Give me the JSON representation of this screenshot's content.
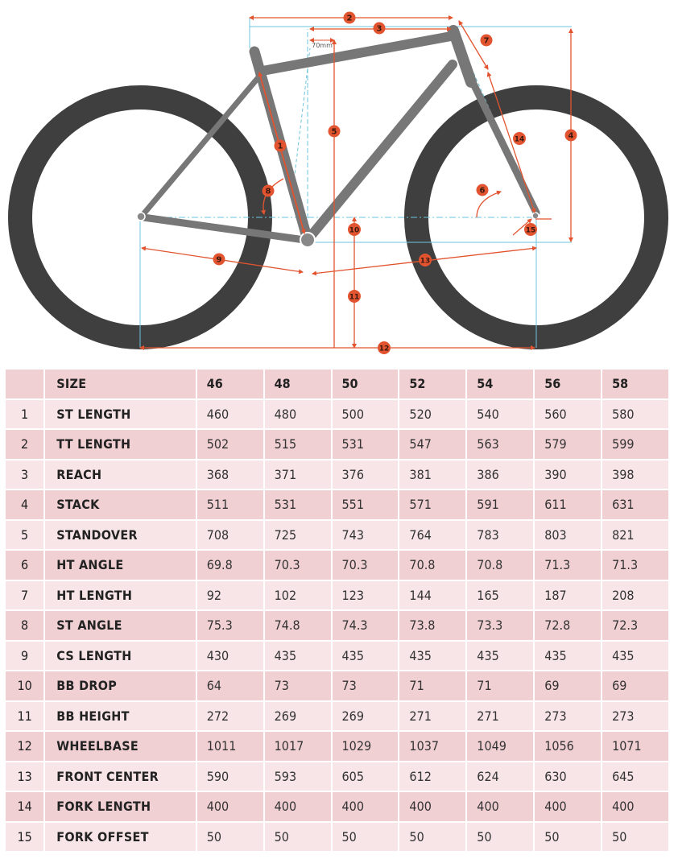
{
  "diagram": {
    "dimension_note": "70mm",
    "callouts": [
      "1",
      "2",
      "3",
      "4",
      "5",
      "6",
      "7",
      "8",
      "9",
      "10",
      "11",
      "12",
      "13",
      "14",
      "15"
    ]
  },
  "table": {
    "header": {
      "label": "SIZE",
      "sizes": [
        "46",
        "48",
        "50",
        "52",
        "54",
        "56",
        "58"
      ]
    },
    "rows": [
      {
        "num": "1",
        "name": "ST LENGTH",
        "values": [
          "460",
          "480",
          "500",
          "520",
          "540",
          "560",
          "580"
        ]
      },
      {
        "num": "2",
        "name": "TT LENGTH",
        "values": [
          "502",
          "515",
          "531",
          "547",
          "563",
          "579",
          "599"
        ]
      },
      {
        "num": "3",
        "name": "REACH",
        "values": [
          "368",
          "371",
          "376",
          "381",
          "386",
          "390",
          "398"
        ]
      },
      {
        "num": "4",
        "name": "STACK",
        "values": [
          "511",
          "531",
          "551",
          "571",
          "591",
          "611",
          "631"
        ]
      },
      {
        "num": "5",
        "name": "STANDOVER",
        "values": [
          "708",
          "725",
          "743",
          "764",
          "783",
          "803",
          "821"
        ]
      },
      {
        "num": "6",
        "name": "HT ANGLE",
        "values": [
          "69.8",
          "70.3",
          "70.3",
          "70.8",
          "70.8",
          "71.3",
          "71.3"
        ]
      },
      {
        "num": "7",
        "name": "HT LENGTH",
        "values": [
          "92",
          "102",
          "123",
          "144",
          "165",
          "187",
          "208"
        ]
      },
      {
        "num": "8",
        "name": "ST ANGLE",
        "values": [
          "75.3",
          "74.8",
          "74.3",
          "73.8",
          "73.3",
          "72.8",
          "72.3"
        ]
      },
      {
        "num": "9",
        "name": "CS LENGTH",
        "values": [
          "430",
          "435",
          "435",
          "435",
          "435",
          "435",
          "435"
        ]
      },
      {
        "num": "10",
        "name": "BB DROP",
        "values": [
          "64",
          "73",
          "73",
          "71",
          "71",
          "69",
          "69"
        ]
      },
      {
        "num": "11",
        "name": "BB HEIGHT",
        "values": [
          "272",
          "269",
          "269",
          "271",
          "271",
          "273",
          "273"
        ]
      },
      {
        "num": "12",
        "name": "WHEELBASE",
        "values": [
          "1011",
          "1017",
          "1029",
          "1037",
          "1049",
          "1056",
          "1071"
        ]
      },
      {
        "num": "13",
        "name": "FRONT CENTER",
        "values": [
          "590",
          "593",
          "605",
          "612",
          "624",
          "630",
          "645"
        ]
      },
      {
        "num": "14",
        "name": "FORK LENGTH",
        "values": [
          "400",
          "400",
          "400",
          "400",
          "400",
          "400",
          "400"
        ]
      },
      {
        "num": "15",
        "name": "FORK OFFSET",
        "values": [
          "50",
          "50",
          "50",
          "50",
          "50",
          "50",
          "50"
        ]
      }
    ]
  },
  "colors": {
    "accent": "#e2542f",
    "guide": "#6ec3dc",
    "tire": "#3f3f3f",
    "frame": "#777777",
    "row_dark": "#f1d0d4",
    "row_light": "#f8e5e7"
  }
}
